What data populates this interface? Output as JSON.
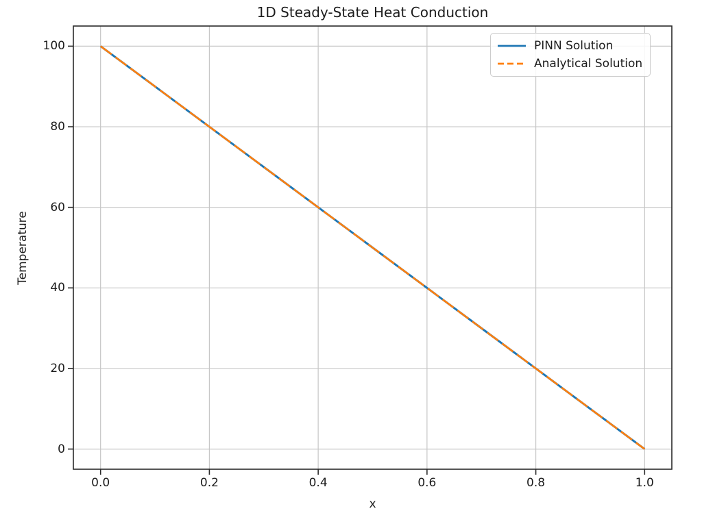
{
  "chart_data": {
    "type": "line",
    "title": "1D Steady-State Heat Conduction",
    "xlabel": "x",
    "ylabel": "Temperature",
    "xlim": [
      -0.05,
      1.05
    ],
    "ylim": [
      -5,
      105
    ],
    "xticks": [
      0.0,
      0.2,
      0.4,
      0.6,
      0.8,
      1.0
    ],
    "xtick_labels": [
      "0.0",
      "0.2",
      "0.4",
      "0.6",
      "0.8",
      "1.0"
    ],
    "yticks": [
      0,
      20,
      40,
      60,
      80,
      100
    ],
    "ytick_labels": [
      "0",
      "20",
      "40",
      "60",
      "80",
      "100"
    ],
    "grid": true,
    "legend_position": "upper right",
    "series": [
      {
        "name": "PINN Solution",
        "color": "#1f77b4",
        "style": "solid",
        "x": [
          0.0,
          0.1,
          0.2,
          0.3,
          0.4,
          0.5,
          0.6,
          0.7,
          0.8,
          0.9,
          1.0
        ],
        "y": [
          100,
          90,
          80,
          70,
          60,
          50,
          40,
          30,
          20,
          10,
          0
        ]
      },
      {
        "name": "Analytical Solution",
        "color": "#ff7f0e",
        "style": "dashed",
        "x": [
          0.0,
          0.1,
          0.2,
          0.3,
          0.4,
          0.5,
          0.6,
          0.7,
          0.8,
          0.9,
          1.0
        ],
        "y": [
          100,
          90,
          80,
          70,
          60,
          50,
          40,
          30,
          20,
          10,
          0
        ]
      }
    ]
  },
  "colors": {
    "grid": "#c6c6c6",
    "spine": "#2a2a2a",
    "text": "#1c1c1c"
  }
}
